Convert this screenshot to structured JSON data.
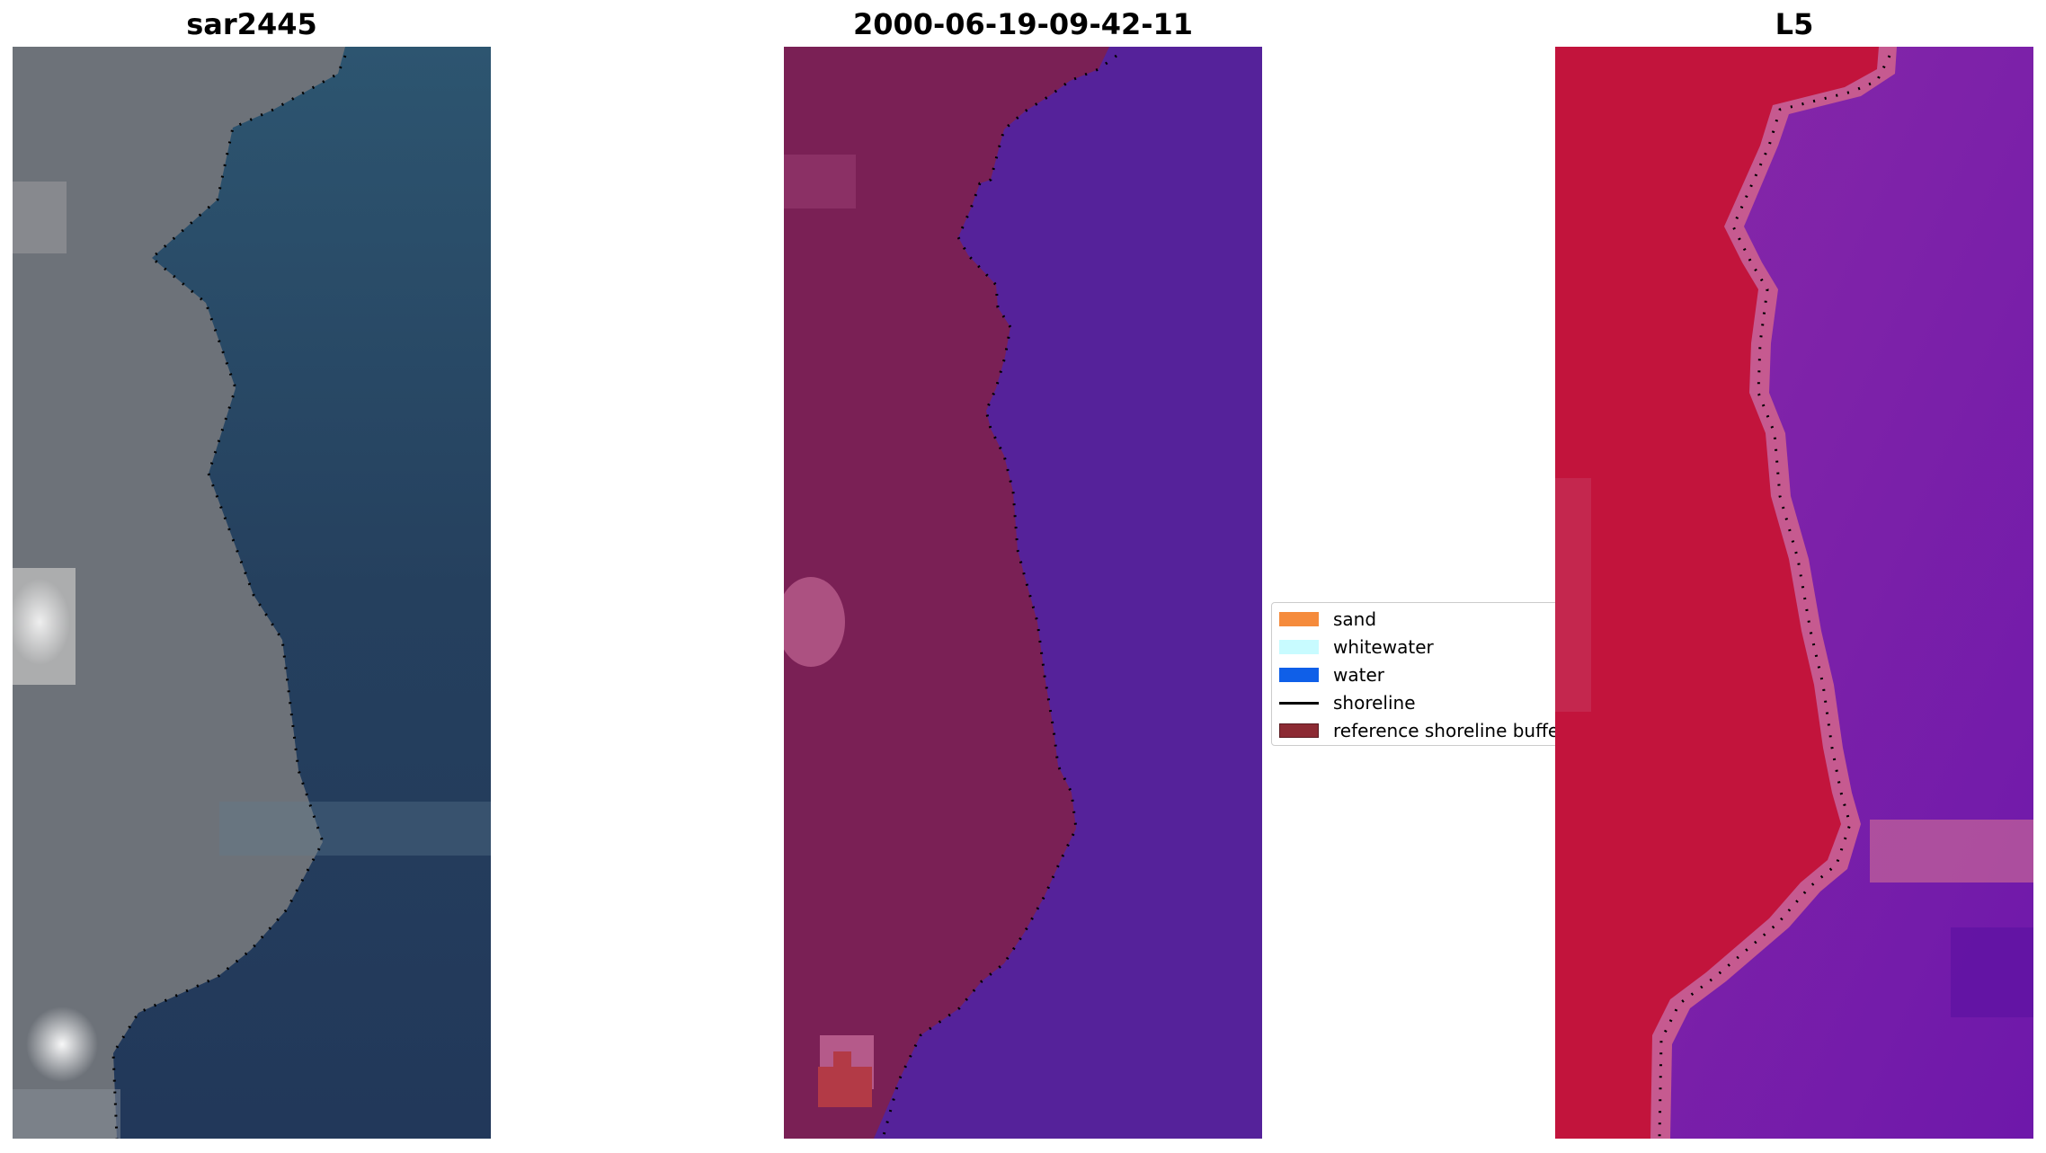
{
  "panels": [
    {
      "title": "sar2445"
    },
    {
      "title": "2000-06-19-09-42-11"
    },
    {
      "title": "L5"
    }
  ],
  "legend": [
    {
      "label": "sand",
      "color": "#f58b3c"
    },
    {
      "label": "whitewater",
      "color": "#c8fbff"
    },
    {
      "label": "water",
      "color": "#0f5fe8"
    },
    {
      "label": "shoreline",
      "color": "#000000"
    },
    {
      "label": "reference shoreline buffer",
      "color": "#8c2a33"
    }
  ],
  "colors": {
    "sar_land": "#6f737a",
    "sar_water": "#243f60",
    "class_land": "#7a2055",
    "class_water": "#55229a",
    "class_pink": "#b55a8a",
    "class_red": "#b33a46",
    "l5_land": "#c2143c",
    "l5_water": "#7d22a8",
    "l5_edge": "#c65a90"
  }
}
